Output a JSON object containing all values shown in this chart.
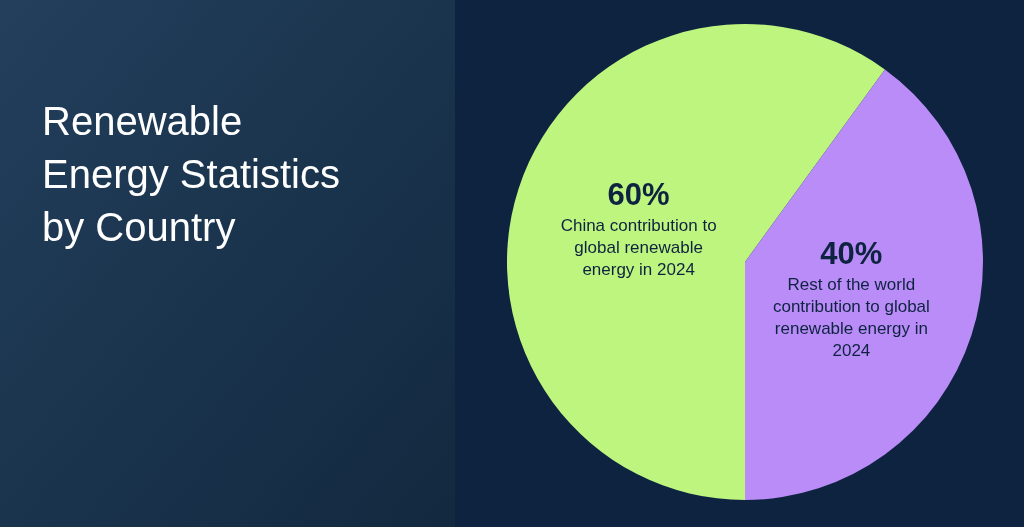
{
  "chart_data": {
    "type": "pie",
    "title": "Renewable Energy Statistics by Country",
    "categories": [
      "China contribution to global renewable energy in 2024",
      "Rest of the world contribution to global renewable energy in 2024"
    ],
    "values": [
      60,
      40
    ],
    "colors": [
      "#bdf57f",
      "#b98cf8"
    ],
    "value_labels": [
      "60%",
      "40%"
    ]
  }
}
